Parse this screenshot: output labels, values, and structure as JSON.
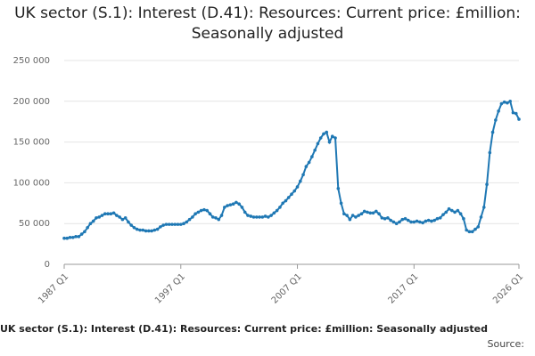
{
  "chart_data": {
    "type": "line",
    "title": "UK sector (S.1): Interest (D.41): Resources: Current price: £million: Seasonally adjusted",
    "footer": "UK sector (S.1): Interest (D.41): Resources: Current price: £million: Seasonally adjusted",
    "source": "Source:",
    "categories": [
      "1987 Q1",
      null,
      null,
      null,
      null,
      null,
      null,
      null,
      null,
      null,
      null,
      null,
      null,
      null,
      null,
      null,
      null,
      null,
      null,
      null,
      null,
      null,
      null,
      null,
      null,
      null,
      null,
      null,
      null,
      null,
      null,
      null,
      null,
      null,
      null,
      null,
      null,
      null,
      null,
      null,
      "1997 Q1",
      null,
      null,
      null,
      null,
      null,
      null,
      null,
      null,
      null,
      null,
      null,
      null,
      null,
      null,
      null,
      null,
      null,
      null,
      null,
      null,
      null,
      null,
      null,
      null,
      null,
      null,
      null,
      null,
      null,
      null,
      null,
      null,
      null,
      null,
      null,
      null,
      null,
      null,
      null,
      "2007 Q1",
      null,
      null,
      null,
      null,
      null,
      null,
      null,
      null,
      null,
      null,
      null,
      null,
      null,
      null,
      null,
      null,
      null,
      null,
      null,
      null,
      null,
      null,
      null,
      null,
      null,
      null,
      null,
      null,
      null,
      null,
      null,
      null,
      null,
      null,
      null,
      null,
      null,
      null,
      null,
      "2017 Q1",
      null,
      null,
      null,
      null,
      null,
      null,
      null,
      null,
      null,
      null,
      null,
      null,
      null,
      null,
      null,
      null,
      null,
      null,
      null,
      null,
      null,
      null,
      null,
      null,
      null,
      null,
      null,
      null,
      null,
      null,
      null,
      null,
      null,
      null,
      null,
      "2026 Q1"
    ],
    "series": [
      {
        "name": "UK sector (S.1): Interest (D.41): Resources",
        "color": "#1f78b4",
        "values": [
          32000,
          32000,
          33000,
          33000,
          34000,
          34000,
          37000,
          40000,
          45000,
          50000,
          53000,
          57000,
          58000,
          60000,
          62000,
          62000,
          62000,
          63000,
          60000,
          58000,
          55000,
          57000,
          52000,
          48000,
          45000,
          43000,
          42000,
          42000,
          41000,
          41000,
          41000,
          42000,
          43000,
          46000,
          48000,
          49000,
          49000,
          49000,
          49000,
          49000,
          49000,
          50000,
          52000,
          55000,
          58000,
          62000,
          64000,
          66000,
          67000,
          66000,
          62000,
          58000,
          57000,
          55000,
          60000,
          70000,
          72000,
          73000,
          74000,
          76000,
          74000,
          70000,
          64000,
          60000,
          59000,
          58000,
          58000,
          58000,
          58000,
          59000,
          58000,
          60000,
          63000,
          66000,
          70000,
          75000,
          78000,
          82000,
          86000,
          90000,
          95000,
          102000,
          110000,
          120000,
          125000,
          132000,
          140000,
          148000,
          155000,
          160000,
          162000,
          150000,
          157000,
          155000,
          93000,
          75000,
          62000,
          60000,
          55000,
          60000,
          58000,
          60000,
          62000,
          65000,
          64000,
          63000,
          63000,
          65000,
          62000,
          57000,
          56000,
          57000,
          54000,
          52000,
          50000,
          52000,
          55000,
          56000,
          54000,
          52000,
          52000,
          53000,
          52000,
          51000,
          53000,
          54000,
          53000,
          54000,
          56000,
          57000,
          61000,
          64000,
          68000,
          66000,
          64000,
          66000,
          62000,
          56000,
          42000,
          40000,
          40000,
          43000,
          46000,
          58000,
          70000,
          98000,
          137000,
          162000,
          177000,
          188000,
          197000,
          199000,
          198000,
          200000,
          186000,
          185000,
          178000
        ]
      }
    ],
    "ylim": [
      0,
      250000
    ],
    "yticks": [
      0,
      {
        "value": 50000,
        "label": "50 000"
      },
      {
        "value": 100000,
        "label": "100 000"
      },
      {
        "value": 150000,
        "label": "150 000"
      },
      {
        "value": 200000,
        "label": "200 000"
      },
      {
        "value": 250000,
        "label": "250 000"
      }
    ],
    "grid": true
  }
}
